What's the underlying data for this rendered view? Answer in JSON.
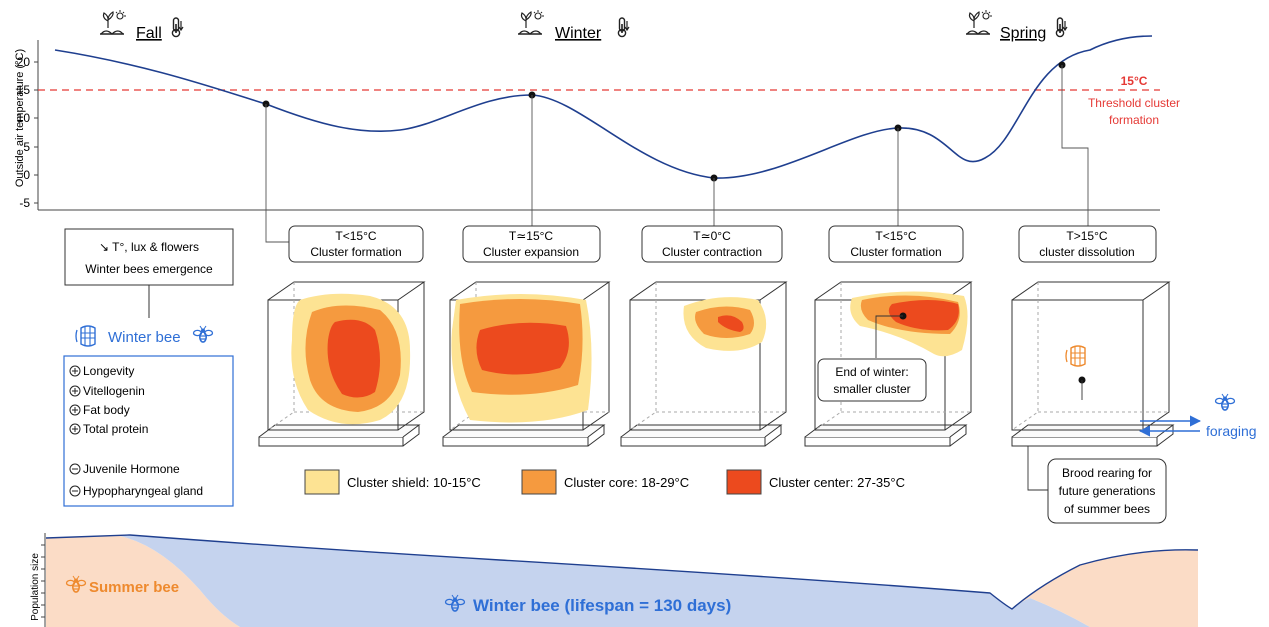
{
  "seasons": [
    {
      "label": "Fall"
    },
    {
      "label": "Winter"
    },
    {
      "label": "Spring"
    }
  ],
  "temp_axis": {
    "label": "Outside air temperature (°C)",
    "ticks": [
      "20",
      "15",
      "10",
      "5",
      "0",
      "-5"
    ]
  },
  "threshold": {
    "value": "15°C",
    "caption_line1": "Threshold cluster",
    "caption_line2": "formation",
    "color": "#e53935"
  },
  "stages": [
    {
      "line1": "T<15°C",
      "line2": "Cluster formation"
    },
    {
      "line1": "T≃15°C",
      "line2": "Cluster expansion"
    },
    {
      "line1": "T≃0°C",
      "line2": "Cluster contraction"
    },
    {
      "line1": "T<15°C",
      "line2": "Cluster formation"
    },
    {
      "line1": "T>15°C",
      "line2": "cluster dissolution"
    }
  ],
  "fall_box": {
    "line1": "↘ T°, lux & flowers",
    "line2": "Winter bees emergence"
  },
  "winter_bee": {
    "title": "Winter bee",
    "increased": [
      "Longevity",
      "Vitellogenin",
      "Fat body",
      "Total protein"
    ],
    "decreased": [
      "Juvenile Hormone",
      "Hypopharyngeal gland"
    ]
  },
  "end_of_winter": {
    "line1": "End of winter:",
    "line2": "smaller cluster"
  },
  "brood_box": {
    "line1": "Brood rearing for",
    "line2": "future generations",
    "line3": "of summer bees"
  },
  "foraging": "foraging",
  "legend": [
    {
      "label": "Cluster shield: 10-15°C",
      "color": "#fde393"
    },
    {
      "label": "Cluster core: 18-29°C",
      "color": "#f59a3f"
    },
    {
      "label": "Cluster center: 27-35°C",
      "color": "#ec4a1e"
    }
  ],
  "population": {
    "axis_label": "Population size",
    "summer_label": "Summer bee",
    "winter_label": "Winter bee (lifespan = 130 days)",
    "summer_color": "#fbdcc6",
    "winter_color": "#c5d3ee"
  },
  "colors": {
    "curve": "#1f3f8f",
    "accent_blue": "#2f6fd6",
    "orange": "#ee8a2e"
  }
}
